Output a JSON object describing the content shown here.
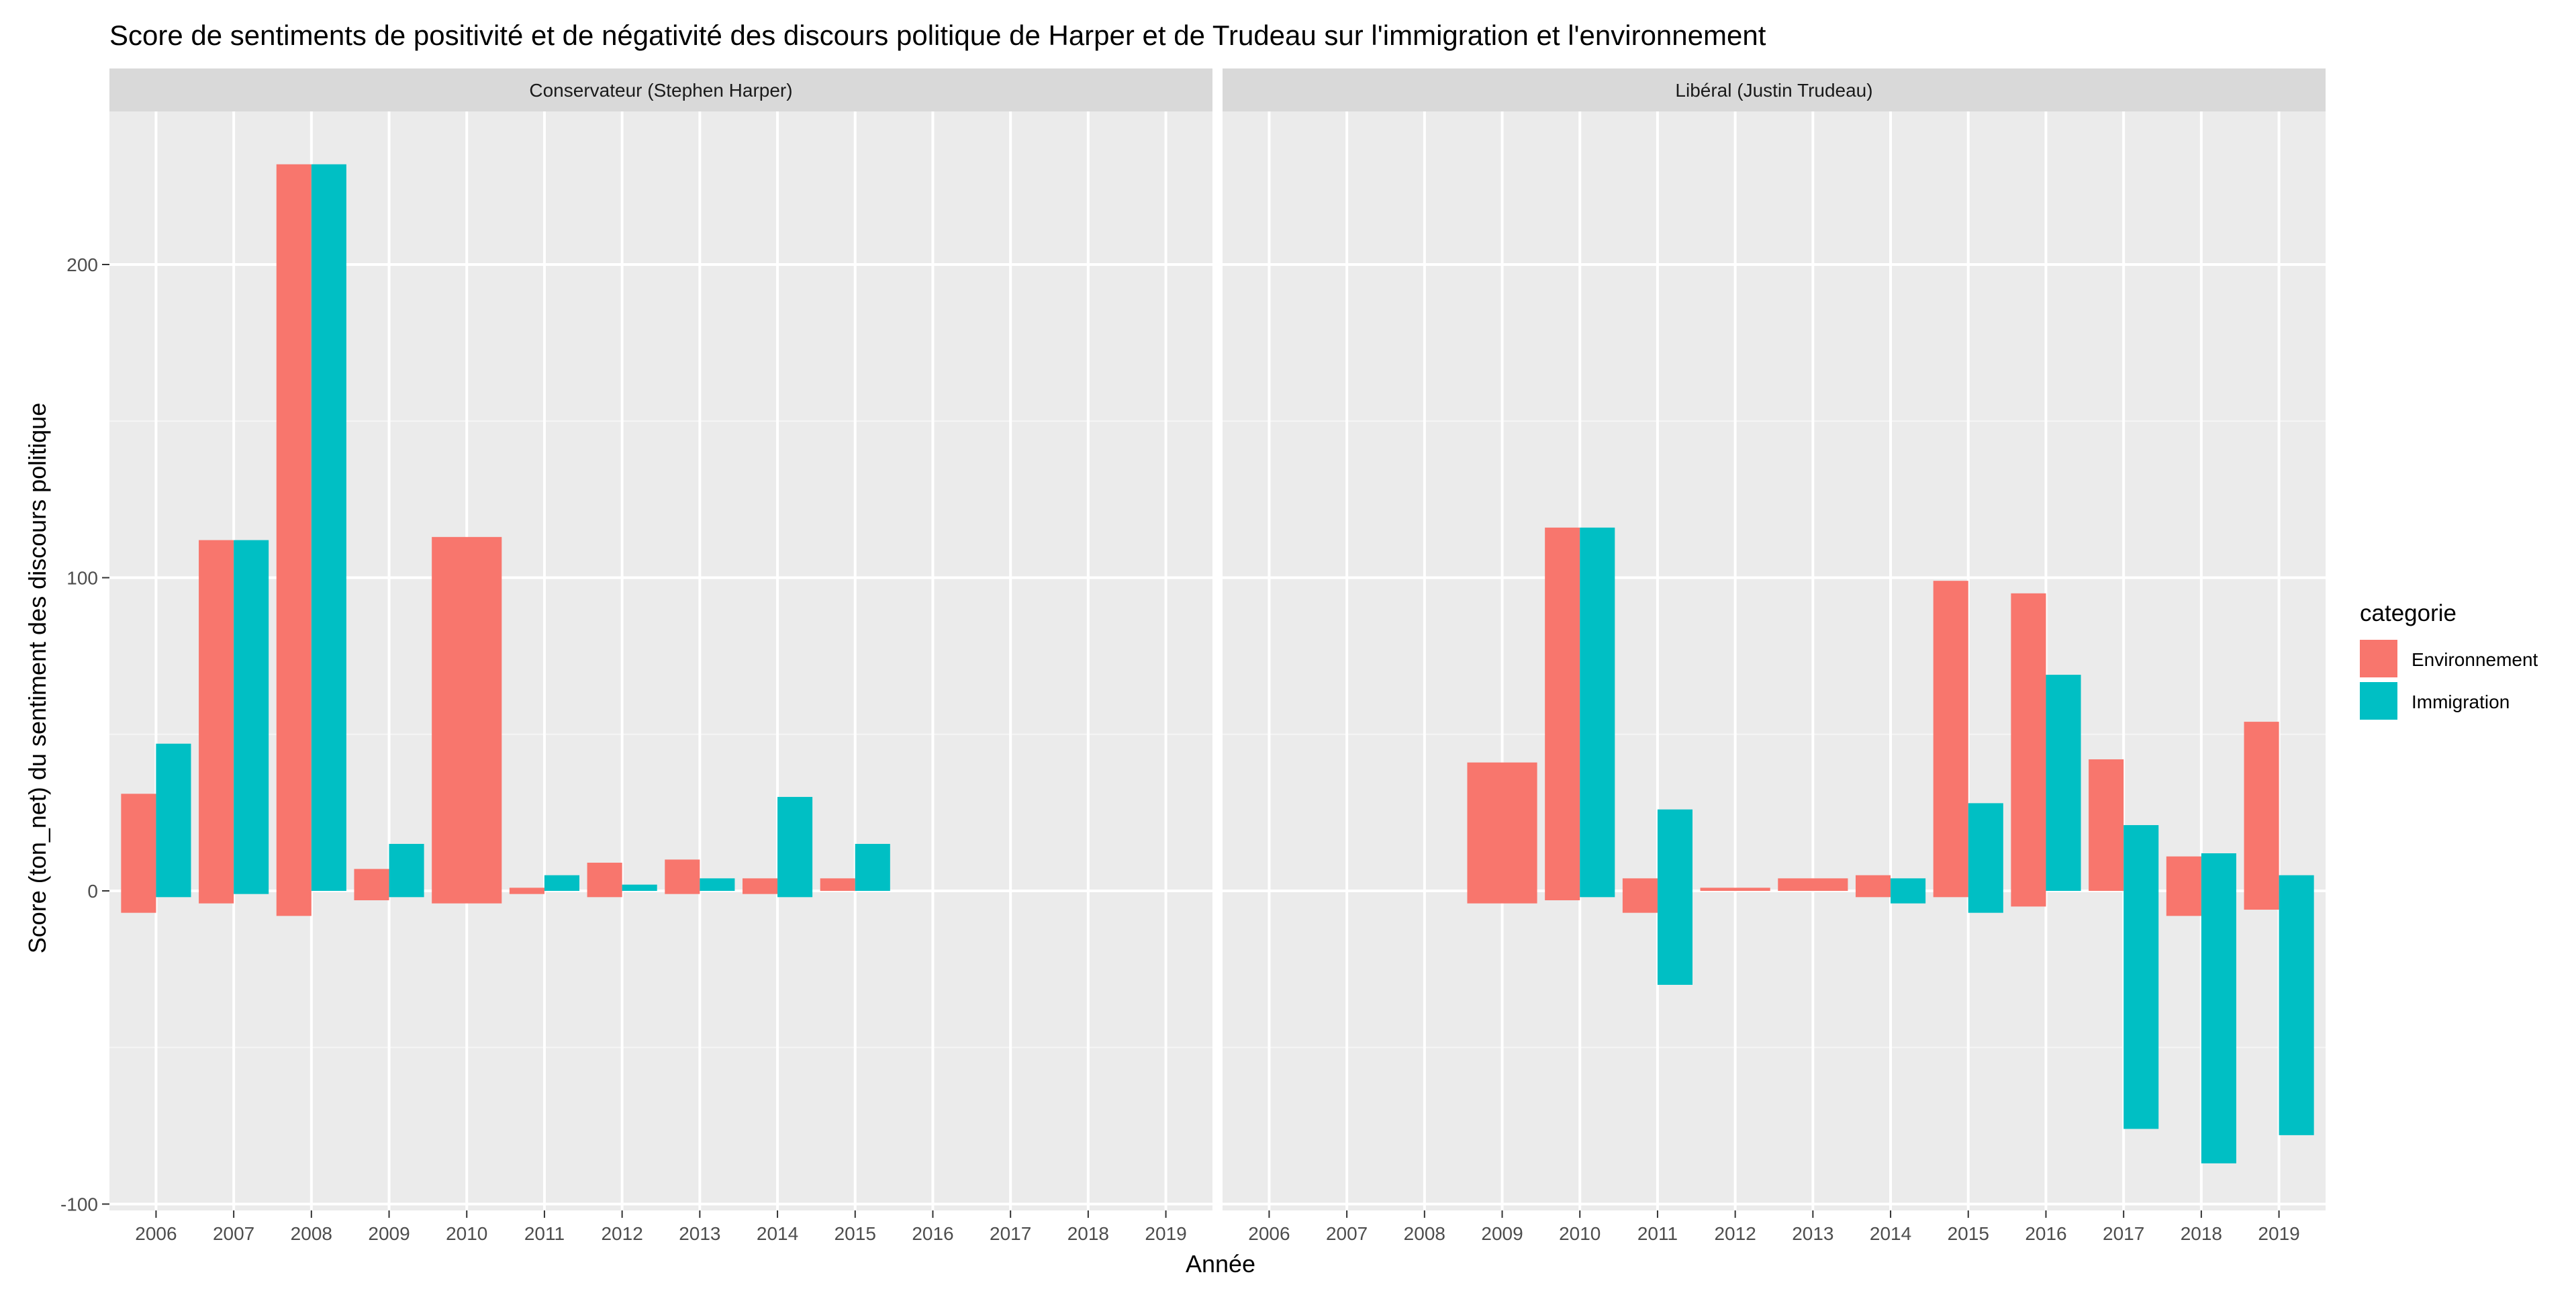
{
  "chart_data": {
    "type": "bar",
    "title": "Score de sentiments de positivité et de négativité des discours politique de Harper et de Trudeau sur l'immigration et l'environnement",
    "xlabel": "Année",
    "ylabel": "Score (ton_net) du sentiment des discours politique",
    "ylim": [
      -100,
      240
    ],
    "yticks": [
      -100,
      0,
      100,
      200
    ],
    "categories": [
      "2006",
      "2007",
      "2008",
      "2009",
      "2010",
      "2011",
      "2012",
      "2013",
      "2014",
      "2015",
      "2016",
      "2017",
      "2018",
      "2019"
    ],
    "legend": {
      "title": "categorie",
      "position": "right",
      "entries": [
        {
          "name": "Environnement",
          "color": "#F8766D"
        },
        {
          "name": "Immigration",
          "color": "#00BFC4"
        }
      ]
    },
    "grid": true,
    "panels": [
      {
        "strip": "Conservateur (Stephen Harper)",
        "series": [
          {
            "name": "Environnement",
            "ranges": [
              [
                -7,
                31
              ],
              [
                -4,
                112
              ],
              [
                -8,
                232
              ],
              [
                -3,
                7
              ],
              [
                -4,
                113
              ],
              [
                -1,
                1
              ],
              [
                -2,
                9
              ],
              [
                -1,
                10
              ],
              [
                -1,
                4
              ],
              [
                0,
                4
              ],
              null,
              null,
              null,
              null
            ]
          },
          {
            "name": "Immigration",
            "ranges": [
              [
                -2,
                47
              ],
              [
                -1,
                112
              ],
              [
                0,
                232
              ],
              [
                -2,
                15
              ],
              null,
              [
                0,
                5
              ],
              [
                0,
                2
              ],
              [
                0,
                4
              ],
              [
                -2,
                30
              ],
              [
                0,
                15
              ],
              null,
              null,
              null,
              null
            ]
          }
        ]
      },
      {
        "strip": "Libéral (Justin Trudeau)",
        "series": [
          {
            "name": "Environnement",
            "ranges": [
              null,
              null,
              null,
              [
                -4,
                41
              ],
              [
                -3,
                116
              ],
              [
                -7,
                4
              ],
              [
                0,
                1
              ],
              [
                0,
                4
              ],
              [
                -2,
                5
              ],
              [
                -2,
                99
              ],
              [
                -5,
                95
              ],
              [
                0,
                42
              ],
              [
                -8,
                11
              ],
              [
                -6,
                54
              ]
            ]
          },
          {
            "name": "Immigration",
            "ranges": [
              null,
              null,
              null,
              null,
              [
                -2,
                116
              ],
              [
                -30,
                26
              ],
              null,
              null,
              [
                -4,
                4
              ],
              [
                -7,
                28
              ],
              [
                0,
                69
              ],
              [
                -76,
                21
              ],
              [
                -87,
                12
              ],
              [
                -78,
                5
              ]
            ]
          }
        ]
      }
    ]
  }
}
